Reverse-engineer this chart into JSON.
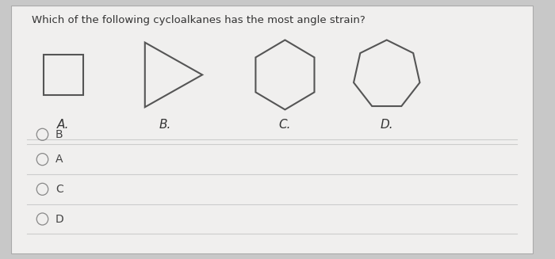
{
  "title": "Which of the following cycloalkanes has the most angle strain?",
  "title_fontsize": 9.5,
  "outer_bg": "#c8c8c8",
  "panel_bg": "#f0efee",
  "shape_color": "#555555",
  "shape_linewidth": 1.5,
  "labels": [
    "A.",
    "B.",
    "C.",
    "D."
  ],
  "label_fontsize": 11,
  "answer_labels": [
    "B",
    "A",
    "C",
    "D"
  ],
  "answer_fontsize": 10,
  "divider_color": "#cccccc",
  "radio_color": "#888888"
}
